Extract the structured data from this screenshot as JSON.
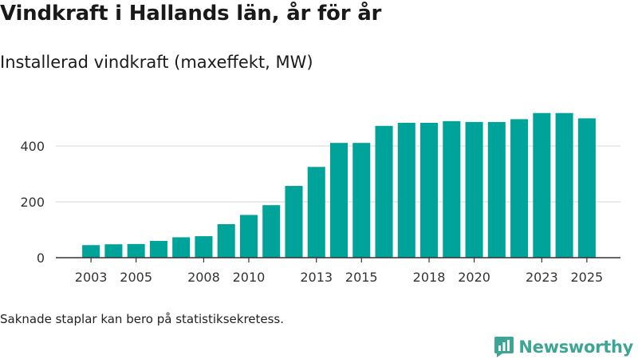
{
  "header": {
    "title": "Vindkraft i Hallands län, år för år",
    "subtitle": "Installerad vindkraft (maxeffekt, MW)"
  },
  "footer": {
    "note": "Saknade staplar kan bero på statistiksekretess.",
    "brand": "Newsworthy"
  },
  "colors": {
    "bar": "#00a39a",
    "grid": "#dddddd",
    "axis": "#333333",
    "brand": "#3ea595"
  },
  "chart_data": {
    "type": "bar",
    "title": "Vindkraft i Hallands län, år för år",
    "subtitle": "Installerad vindkraft (maxeffekt, MW)",
    "xlabel": "",
    "ylabel": "",
    "categories": [
      "2003",
      "2004",
      "2005",
      "2006",
      "2007",
      "2008",
      "2009",
      "2010",
      "2011",
      "2012",
      "2013",
      "2014",
      "2015",
      "2016",
      "2017",
      "2018",
      "2019",
      "2020",
      "2021",
      "2022",
      "2023",
      "2024",
      "2025"
    ],
    "values": [
      45,
      48,
      49,
      60,
      73,
      77,
      120,
      153,
      188,
      257,
      325,
      411,
      411,
      472,
      483,
      483,
      489,
      486,
      486,
      496,
      518,
      518,
      499
    ],
    "x_tick_labels": [
      "2003",
      "2005",
      "2008",
      "2010",
      "2013",
      "2015",
      "2018",
      "2020",
      "2023",
      "2025"
    ],
    "y_ticks": [
      0,
      200,
      400
    ],
    "ylim": [
      0,
      520
    ],
    "grid": true
  }
}
